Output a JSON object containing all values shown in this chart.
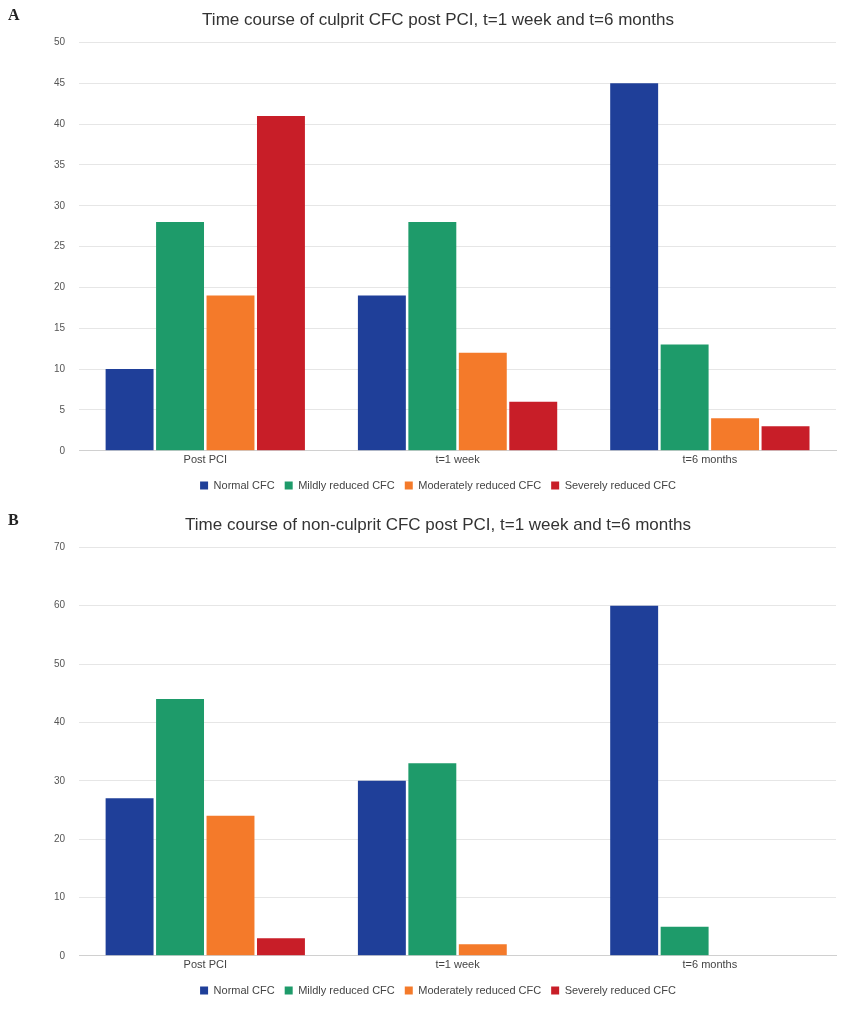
{
  "chart_data": [
    {
      "type": "bar",
      "title": "Time course of culprit CFC post PCI, t=1 week and t=6 months",
      "annotations": [
        "A"
      ],
      "categories": [
        "Post PCI",
        "t=1 week",
        "t=6 months"
      ],
      "series": [
        {
          "name": "Normal CFC",
          "color": "#1f3f99",
          "values": [
            10,
            19,
            45
          ]
        },
        {
          "name": "Mildly reduced CFC",
          "color": "#1e9b6a",
          "values": [
            28,
            28,
            13
          ]
        },
        {
          "name": "Moderately reduced CFC",
          "color": "#f47a2a",
          "values": [
            19,
            12,
            4
          ]
        },
        {
          "name": "Severely reduced CFC",
          "color": "#c81e28",
          "values": [
            41,
            6,
            3
          ]
        }
      ],
      "ylim": [
        0,
        50
      ],
      "yticks": [
        0,
        5,
        10,
        15,
        20,
        25,
        30,
        35,
        40,
        45,
        50
      ],
      "grid": "y",
      "legend": "bottom"
    },
    {
      "type": "bar",
      "title": "Time course of non-culprit CFC post PCI, t=1 week and t=6 months",
      "annotations": [
        "B"
      ],
      "categories": [
        "Post PCI",
        "t=1 week",
        "t=6 months"
      ],
      "series": [
        {
          "name": "Normal CFC",
          "color": "#1f3f99",
          "values": [
            27,
            30,
            60
          ]
        },
        {
          "name": "Mildly reduced CFC",
          "color": "#1e9b6a",
          "values": [
            44,
            33,
            5
          ]
        },
        {
          "name": "Moderately reduced CFC",
          "color": "#f47a2a",
          "values": [
            24,
            2,
            0
          ]
        },
        {
          "name": "Severely reduced CFC",
          "color": "#c81e28",
          "values": [
            3,
            0,
            0
          ]
        }
      ],
      "ylim": [
        0,
        70
      ],
      "yticks": [
        0,
        10,
        20,
        30,
        40,
        50,
        60,
        70
      ],
      "grid": "y",
      "legend": "bottom"
    }
  ]
}
